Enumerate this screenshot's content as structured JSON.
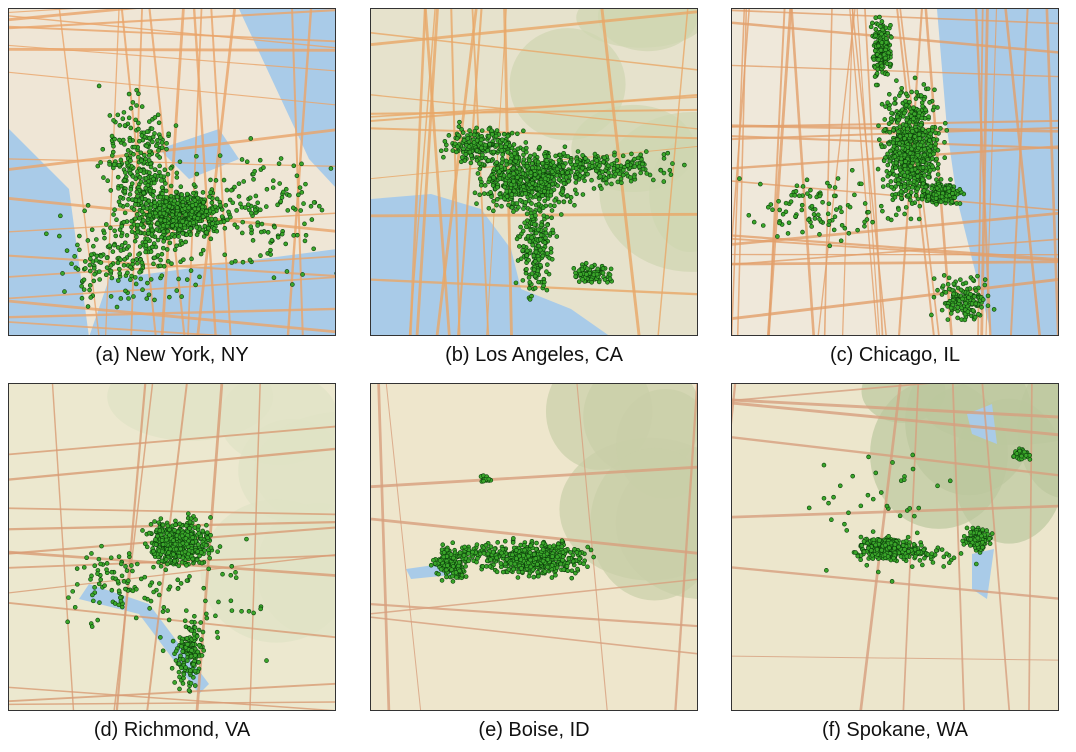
{
  "panels": [
    {
      "caption": "(a) New York, NY"
    },
    {
      "caption": "(b) Los Angeles, CA"
    },
    {
      "caption": "(c) Chicago, IL"
    },
    {
      "caption": "(d) Richmond, VA"
    },
    {
      "caption": "(e) Boise, ID"
    },
    {
      "caption": "(f) Spokane, WA"
    }
  ]
}
